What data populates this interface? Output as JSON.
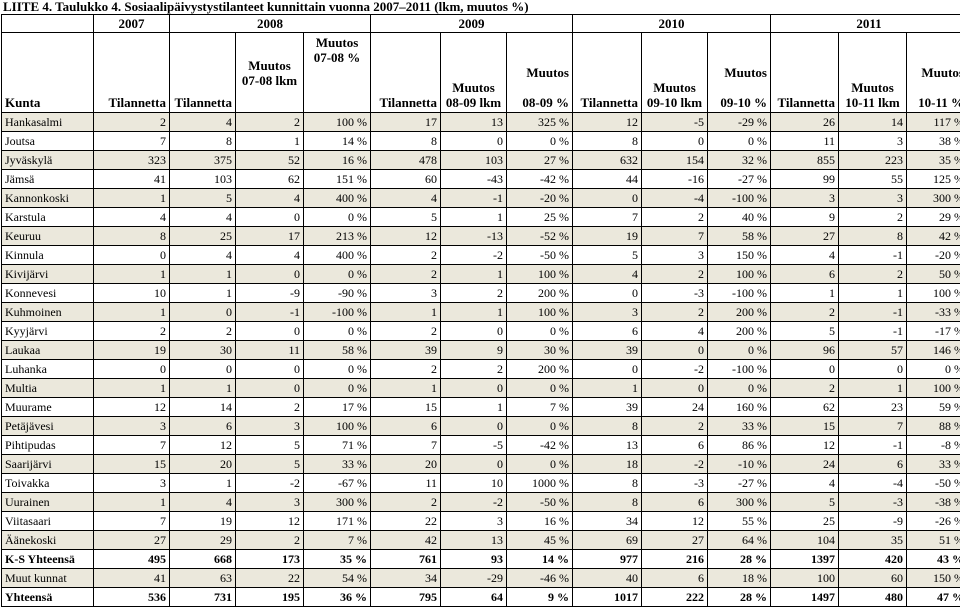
{
  "title": "LIITE 4. Taulukko 4. Sosiaalipäivystystilanteet kunnittain vuonna 2007–2011 (lkm, muutos %)",
  "header": {
    "years": [
      "2007",
      "2008",
      "2009",
      "2010",
      "2011"
    ],
    "kunta": "Kunta",
    "tilannetta": "Tilannetta",
    "muutos": "Muutos",
    "c2008_lkm": "07-08 lkm",
    "c2008_pct": "07-08 %",
    "c2009_lkm": "08-09 lkm",
    "c2009_pct": "08-09 %",
    "c2010_lkm": "09-10 lkm",
    "c2010_pct": "09-10 %",
    "c2011_lkm": "10-11 lkm",
    "c2011_pct": "10-11 %"
  },
  "rows": [
    [
      "Hankasalmi",
      "2",
      "4",
      "2",
      "100 %",
      "17",
      "13",
      "325 %",
      "12",
      "-5",
      "-29 %",
      "26",
      "14",
      "117 %"
    ],
    [
      "Joutsa",
      "7",
      "8",
      "1",
      "14 %",
      "8",
      "0",
      "0 %",
      "8",
      "0",
      "0 %",
      "11",
      "3",
      "38 %"
    ],
    [
      "Jyväskylä",
      "323",
      "375",
      "52",
      "16 %",
      "478",
      "103",
      "27 %",
      "632",
      "154",
      "32 %",
      "855",
      "223",
      "35 %"
    ],
    [
      "Jämsä",
      "41",
      "103",
      "62",
      "151 %",
      "60",
      "-43",
      "-42 %",
      "44",
      "-16",
      "-27 %",
      "99",
      "55",
      "125 %"
    ],
    [
      "Kannonkoski",
      "1",
      "5",
      "4",
      "400 %",
      "4",
      "-1",
      "-20 %",
      "0",
      "-4",
      "-100 %",
      "3",
      "3",
      "300 %"
    ],
    [
      "Karstula",
      "4",
      "4",
      "0",
      "0 %",
      "5",
      "1",
      "25 %",
      "7",
      "2",
      "40 %",
      "9",
      "2",
      "29 %"
    ],
    [
      "Keuruu",
      "8",
      "25",
      "17",
      "213 %",
      "12",
      "-13",
      "-52 %",
      "19",
      "7",
      "58 %",
      "27",
      "8",
      "42 %"
    ],
    [
      "Kinnula",
      "0",
      "4",
      "4",
      "400 %",
      "2",
      "-2",
      "-50 %",
      "5",
      "3",
      "150 %",
      "4",
      "-1",
      "-20 %"
    ],
    [
      "Kivijärvi",
      "1",
      "1",
      "0",
      "0 %",
      "2",
      "1",
      "100 %",
      "4",
      "2",
      "100 %",
      "6",
      "2",
      "50 %"
    ],
    [
      "Konnevesi",
      "10",
      "1",
      "-9",
      "-90 %",
      "3",
      "2",
      "200 %",
      "0",
      "-3",
      "-100 %",
      "1",
      "1",
      "100 %"
    ],
    [
      "Kuhmoinen",
      "1",
      "0",
      "-1",
      "-100 %",
      "1",
      "1",
      "100 %",
      "3",
      "2",
      "200 %",
      "2",
      "-1",
      "-33 %"
    ],
    [
      "Kyyjärvi",
      "2",
      "2",
      "0",
      "0 %",
      "2",
      "0",
      "0 %",
      "6",
      "4",
      "200 %",
      "5",
      "-1",
      "-17 %"
    ],
    [
      "Laukaa",
      "19",
      "30",
      "11",
      "58 %",
      "39",
      "9",
      "30 %",
      "39",
      "0",
      "0 %",
      "96",
      "57",
      "146 %"
    ],
    [
      "Luhanka",
      "0",
      "0",
      "0",
      "0 %",
      "2",
      "2",
      "200 %",
      "0",
      "-2",
      "-100 %",
      "0",
      "0",
      "0 %"
    ],
    [
      "Multia",
      "1",
      "1",
      "0",
      "0 %",
      "1",
      "0",
      "0 %",
      "1",
      "0",
      "0 %",
      "2",
      "1",
      "100 %"
    ],
    [
      "Muurame",
      "12",
      "14",
      "2",
      "17 %",
      "15",
      "1",
      "7 %",
      "39",
      "24",
      "160 %",
      "62",
      "23",
      "59 %"
    ],
    [
      "Petäjävesi",
      "3",
      "6",
      "3",
      "100 %",
      "6",
      "0",
      "0 %",
      "8",
      "2",
      "33 %",
      "15",
      "7",
      "88 %"
    ],
    [
      "Pihtipudas",
      "7",
      "12",
      "5",
      "71 %",
      "7",
      "-5",
      "-42 %",
      "13",
      "6",
      "86 %",
      "12",
      "-1",
      "-8 %"
    ],
    [
      "Saarijärvi",
      "15",
      "20",
      "5",
      "33 %",
      "20",
      "0",
      "0 %",
      "18",
      "-2",
      "-10 %",
      "24",
      "6",
      "33 %"
    ],
    [
      "Toivakka",
      "3",
      "1",
      "-2",
      "-67 %",
      "11",
      "10",
      "1000 %",
      "8",
      "-3",
      "-27 %",
      "4",
      "-4",
      "-50 %"
    ],
    [
      "Uurainen",
      "1",
      "4",
      "3",
      "300 %",
      "2",
      "-2",
      "-50 %",
      "8",
      "6",
      "300 %",
      "5",
      "-3",
      "-38 %"
    ],
    [
      "Viitasaari",
      "7",
      "19",
      "12",
      "171 %",
      "22",
      "3",
      "16 %",
      "34",
      "12",
      "55 %",
      "25",
      "-9",
      "-26 %"
    ],
    [
      "Äänekoski",
      "27",
      "29",
      "2",
      "7 %",
      "42",
      "13",
      "45 %",
      "69",
      "27",
      "64 %",
      "104",
      "35",
      "51 %"
    ],
    [
      "K-S Yhteensä",
      "495",
      "668",
      "173",
      "35 %",
      "761",
      "93",
      "14 %",
      "977",
      "216",
      "28 %",
      "1397",
      "420",
      "43 %"
    ],
    [
      "Muut kunnat",
      "41",
      "63",
      "22",
      "54 %",
      "34",
      "-29",
      "-46 %",
      "40",
      "6",
      "18 %",
      "100",
      "60",
      "150 %"
    ],
    [
      "Yhteensä",
      "536",
      "731",
      "195",
      "36 %",
      "795",
      "64",
      "9 %",
      "1017",
      "222",
      "28 %",
      "1497",
      "480",
      "47 %"
    ]
  ],
  "row_styles": {
    "shaded": [
      0,
      2,
      4,
      6,
      8,
      10,
      12,
      14,
      16,
      18,
      20,
      22,
      24
    ],
    "bold": [
      23,
      25
    ]
  }
}
